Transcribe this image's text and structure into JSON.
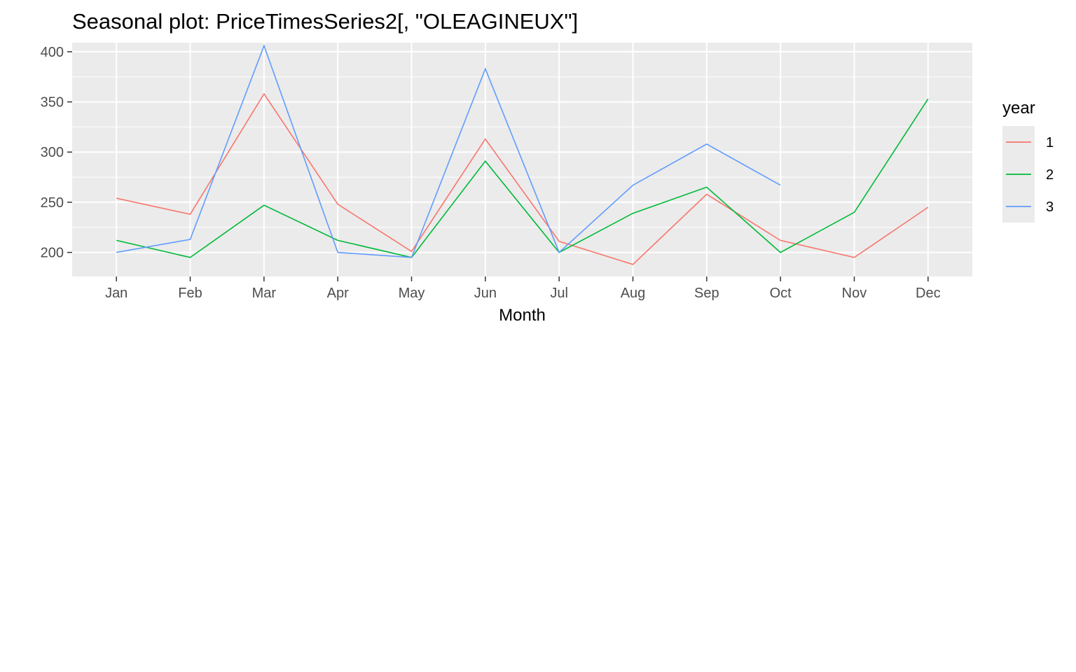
{
  "chart_data": {
    "type": "line",
    "title": "Seasonal plot: PriceTimesSeries2[, \"OLEAGINEUX\"]",
    "xlabel": "Month",
    "ylabel": "",
    "categories": [
      "Jan",
      "Feb",
      "Mar",
      "Apr",
      "May",
      "Jun",
      "Jul",
      "Aug",
      "Sep",
      "Oct",
      "Nov",
      "Dec"
    ],
    "ylim": [
      176,
      409
    ],
    "y_ticks": [
      200,
      250,
      300,
      350,
      400
    ],
    "y_tick_labels": [
      "200",
      "250",
      "300",
      "350",
      "400"
    ],
    "grid": true,
    "legend": {
      "title": "year",
      "position": "right"
    },
    "series": [
      {
        "name": "1",
        "color": "#F8766D",
        "values": [
          254,
          238,
          358,
          248,
          201,
          313,
          211,
          188,
          258,
          212,
          195,
          245
        ]
      },
      {
        "name": "2",
        "color": "#00BA38",
        "values": [
          212,
          195,
          247,
          212,
          195,
          291,
          200,
          239,
          265,
          200,
          240,
          353
        ]
      },
      {
        "name": "3",
        "color": "#619CFF",
        "values": [
          200,
          213,
          406,
          200,
          195,
          383,
          200,
          267,
          308,
          267,
          null,
          null
        ]
      }
    ],
    "panel_background": "#EBEBEB"
  }
}
